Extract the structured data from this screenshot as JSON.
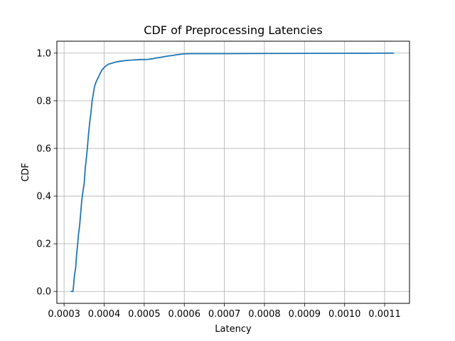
{
  "chart_data": {
    "type": "line",
    "title": "CDF of Preprocessing Latencies",
    "xlabel": "Latency",
    "ylabel": "CDF",
    "xlim": [
      0.000282,
      0.001162
    ],
    "ylim": [
      -0.05,
      1.05
    ],
    "x_ticks": [
      0.0003,
      0.0004,
      0.0005,
      0.0006,
      0.0007,
      0.0008,
      0.0009,
      0.001,
      0.0011
    ],
    "x_tick_labels": [
      "0.0003",
      "0.0004",
      "0.0005",
      "0.0006",
      "0.0007",
      "0.0008",
      "0.0009",
      "0.0010",
      "0.0011"
    ],
    "y_ticks": [
      0.0,
      0.2,
      0.4,
      0.6,
      0.8,
      1.0
    ],
    "y_tick_labels": [
      "0.0",
      "0.2",
      "0.4",
      "0.6",
      "0.8",
      "1.0"
    ],
    "grid": true,
    "series": [
      {
        "color": "#1f77b4",
        "x": [
          0.000318,
          0.000322,
          0.000324,
          0.000326,
          0.000329,
          0.000331,
          0.000334,
          0.000336,
          0.000339,
          0.000341,
          0.000344,
          0.000347,
          0.00035,
          0.000353,
          0.000355,
          0.000358,
          0.000361,
          0.000364,
          0.000367,
          0.00037,
          0.000373,
          0.000376,
          0.00038,
          0.000383,
          0.000386,
          0.00039,
          0.000395,
          0.0004,
          0.000405,
          0.00041,
          0.00042,
          0.00043,
          0.00044,
          0.00045,
          0.00046,
          0.00047,
          0.00048,
          0.00049,
          0.0005,
          0.00051,
          0.00052,
          0.000525,
          0.00053,
          0.00054,
          0.00055,
          0.00056,
          0.00057,
          0.00058,
          0.00059,
          0.0006,
          0.00062,
          0.00065,
          0.0007,
          0.0008,
          0.0009,
          0.001,
          0.00105,
          0.00108,
          0.00111,
          0.001122
        ],
        "y": [
          0.0,
          0.0,
          0.03,
          0.07,
          0.1,
          0.15,
          0.2,
          0.24,
          0.28,
          0.32,
          0.38,
          0.42,
          0.45,
          0.52,
          0.55,
          0.6,
          0.66,
          0.71,
          0.75,
          0.8,
          0.83,
          0.86,
          0.88,
          0.89,
          0.9,
          0.915,
          0.93,
          0.94,
          0.947,
          0.953,
          0.958,
          0.963,
          0.966,
          0.968,
          0.97,
          0.971,
          0.972,
          0.973,
          0.973,
          0.974,
          0.976,
          0.978,
          0.98,
          0.982,
          0.985,
          0.988,
          0.99,
          0.993,
          0.995,
          0.997,
          0.998,
          0.998,
          0.998,
          0.9985,
          0.999,
          0.9993,
          0.9995,
          0.9997,
          0.9999,
          1.0
        ]
      }
    ]
  }
}
